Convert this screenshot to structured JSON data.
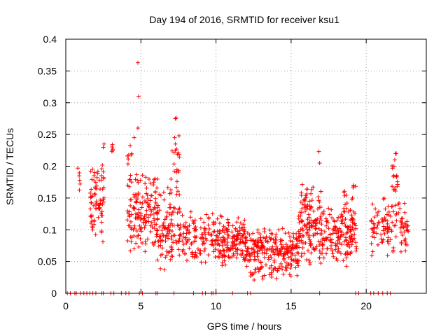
{
  "chart_data": {
    "type": "scatter",
    "title": "Day 194 of 2016, SRMTID for receiver ksu1",
    "xlabel": "GPS time / hours",
    "ylabel": "SRMTID / TECUs",
    "xlim": [
      0,
      24
    ],
    "ylim": [
      0,
      0.4
    ],
    "grid": true,
    "marker": "+",
    "color": "#ff0000",
    "xticks": [
      0,
      5,
      10,
      15,
      20
    ],
    "yticks": [
      0,
      0.05,
      0.1,
      0.15,
      0.2,
      0.25,
      0.3,
      0.35,
      0.4
    ],
    "xtick_labels": [
      "0",
      "5",
      "10",
      "15",
      "20"
    ],
    "ytick_labels": [
      "0",
      "0.05",
      "0.1",
      "0.15",
      "0.2",
      "0.25",
      "0.3",
      "0.35",
      "0.4"
    ],
    "zero_points_x": [
      0.1,
      0.3,
      0.6,
      0.7,
      1.0,
      1.2,
      1.4,
      1.6,
      1.8,
      2.0,
      2.4,
      2.5,
      3.0,
      3.2,
      3.7,
      4.0,
      4.2,
      4.9,
      5.1,
      6.0,
      6.1,
      7.2,
      8.5,
      9.1,
      9.3,
      9.7,
      9.8,
      10.0,
      11.1,
      12.1,
      12.3,
      16.9,
      19.3,
      19.5,
      20.3,
      20.5,
      20.8,
      21.1,
      21.4,
      21.6
    ],
    "segments": [
      {
        "x0": 0.8,
        "x1": 0.95,
        "lo": 0.16,
        "hi": 0.2,
        "n": 5
      },
      {
        "x0": 1.6,
        "x1": 2.55,
        "lo": 0.08,
        "hi": 0.2,
        "n": 70
      },
      {
        "x0": 2.3,
        "x1": 2.55,
        "lo": 0.15,
        "hi": 0.235,
        "n": 8
      },
      {
        "x0": 3.0,
        "x1": 3.15,
        "lo": 0.22,
        "hi": 0.235,
        "n": 4
      },
      {
        "x0": 4.1,
        "x1": 6.1,
        "lo": 0.06,
        "hi": 0.2,
        "n": 150
      },
      {
        "x0": 4.1,
        "x1": 4.5,
        "lo": 0.15,
        "hi": 0.245,
        "n": 10
      },
      {
        "x0": 6.0,
        "x1": 7.6,
        "lo": 0.03,
        "hi": 0.175,
        "n": 110
      },
      {
        "x0": 7.0,
        "x1": 7.6,
        "lo": 0.15,
        "hi": 0.255,
        "n": 20
      },
      {
        "x0": 7.5,
        "x1": 9.8,
        "lo": 0.04,
        "hi": 0.135,
        "n": 110
      },
      {
        "x0": 9.8,
        "x1": 12.0,
        "lo": 0.04,
        "hi": 0.125,
        "n": 170
      },
      {
        "x0": 12.0,
        "x1": 15.5,
        "lo": 0.02,
        "hi": 0.11,
        "n": 260
      },
      {
        "x0": 15.5,
        "x1": 17.0,
        "lo": 0.04,
        "hi": 0.17,
        "n": 130
      },
      {
        "x0": 15.7,
        "x1": 16.2,
        "lo": 0.12,
        "hi": 0.175,
        "n": 15
      },
      {
        "x0": 17.0,
        "x1": 19.4,
        "lo": 0.04,
        "hi": 0.14,
        "n": 160
      },
      {
        "x0": 18.5,
        "x1": 19.3,
        "lo": 0.1,
        "hi": 0.18,
        "n": 20
      },
      {
        "x0": 20.3,
        "x1": 22.8,
        "lo": 0.055,
        "hi": 0.155,
        "n": 120
      },
      {
        "x0": 21.7,
        "x1": 22.1,
        "lo": 0.15,
        "hi": 0.215,
        "n": 15
      }
    ],
    "outliers": [
      {
        "x": 2.55,
        "y": 0.235
      },
      {
        "x": 3.1,
        "y": 0.234
      },
      {
        "x": 4.55,
        "y": 0.245
      },
      {
        "x": 4.8,
        "y": 0.363
      },
      {
        "x": 4.85,
        "y": 0.31
      },
      {
        "x": 4.8,
        "y": 0.26
      },
      {
        "x": 7.35,
        "y": 0.276
      },
      {
        "x": 7.3,
        "y": 0.275
      },
      {
        "x": 7.25,
        "y": 0.245
      },
      {
        "x": 7.3,
        "y": 0.235
      },
      {
        "x": 16.85,
        "y": 0.223
      },
      {
        "x": 16.9,
        "y": 0.205
      },
      {
        "x": 21.95,
        "y": 0.22
      },
      {
        "x": 22.0,
        "y": 0.22
      },
      {
        "x": 21.9,
        "y": 0.21
      },
      {
        "x": 21.85,
        "y": 0.2
      },
      {
        "x": 0.8,
        "y": 0.197
      }
    ]
  }
}
